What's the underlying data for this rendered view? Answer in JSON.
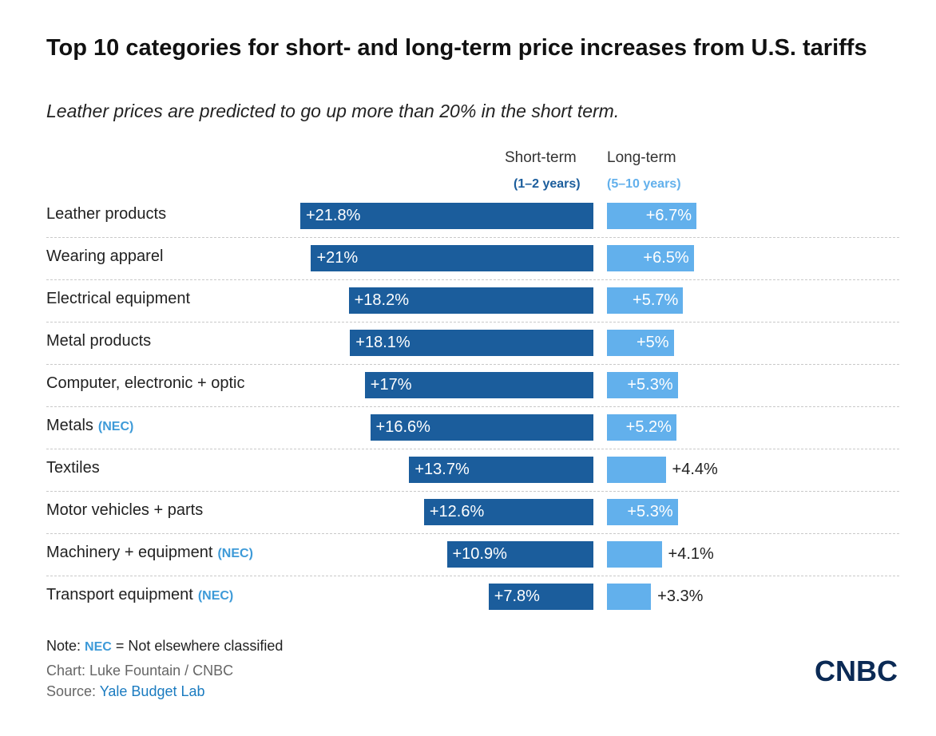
{
  "colors": {
    "short_term": "#1b5d9c",
    "long_term": "#62b0ec",
    "nec": "#3d9ad8",
    "source_link": "#1a7bc0"
  },
  "title": "Top 10 categories for short- and long-term price increases from U.S. tariffs",
  "subtitle": "Leather prices are predicted to go up more than 20% in the short term.",
  "columns": {
    "short": {
      "name": "Short-term",
      "range": "(1–2 years)"
    },
    "long": {
      "name": "Long-term",
      "range": "(5–10 years)"
    }
  },
  "chart_data": {
    "type": "bar",
    "orientation": "horizontal",
    "title": "Top 10 categories for short- and long-term price increases from U.S. tariffs",
    "categories": [
      "Leather products",
      "Wearing apparel",
      "Electrical equipment",
      "Metal products",
      "Computer, electronic + optic",
      "Metals",
      "Textiles",
      "Motor vehicles + parts",
      "Machinery + equipment",
      "Transport equipment"
    ],
    "nec_flags": [
      false,
      false,
      false,
      false,
      false,
      true,
      false,
      false,
      true,
      true
    ],
    "series": [
      {
        "name": "Short-term (1–2 years)",
        "values": [
          21.8,
          21,
          18.2,
          18.1,
          17,
          16.6,
          13.7,
          12.6,
          10.9,
          7.8
        ],
        "labels": [
          "+21.8%",
          "+21%",
          "+18.2%",
          "+18.1%",
          "+17%",
          "+16.6%",
          "+13.7%",
          "+12.6%",
          "+10.9%",
          "+7.8%"
        ]
      },
      {
        "name": "Long-term (5–10 years)",
        "values": [
          6.7,
          6.5,
          5.7,
          5,
          5.3,
          5.2,
          4.4,
          5.3,
          4.1,
          3.3
        ],
        "labels": [
          "+6.7%",
          "+6.5%",
          "+5.7%",
          "+5%",
          "+5.3%",
          "+5.2%",
          "+4.4%",
          "+5.3%",
          "+4.1%",
          "+3.3%"
        ]
      }
    ]
  },
  "nec_tag": "(NEC)",
  "note": {
    "prefix": "Note:",
    "key": "NEC",
    "text": "= Not elsewhere classified"
  },
  "credit": {
    "chart": "Chart: Luke Fountain / CNBC",
    "source_prefix": "Source:",
    "source_name": "Yale Budget Lab"
  },
  "logo": {
    "text": "CNBC",
    "icon": "cnbc-logo-icon"
  }
}
